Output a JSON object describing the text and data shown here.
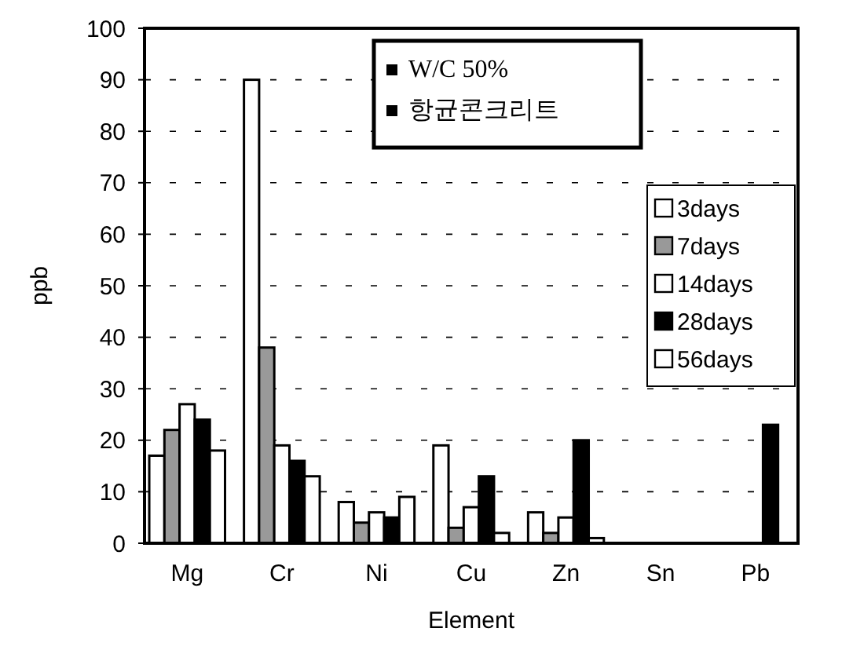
{
  "chart_data": {
    "type": "bar",
    "xlabel": "Element",
    "ylabel": "ppb",
    "categories": [
      "Mg",
      "Cr",
      "Ni",
      "Cu",
      "Zn",
      "Sn",
      "Pb"
    ],
    "series": [
      {
        "name": "3days",
        "color": "#ffffff",
        "values": [
          17,
          90,
          8,
          19,
          6,
          0,
          0
        ]
      },
      {
        "name": "7days",
        "color": "#999999",
        "values": [
          22,
          38,
          4,
          3,
          2,
          0,
          0
        ]
      },
      {
        "name": "14days",
        "color": "#ffffff",
        "values": [
          27,
          19,
          6,
          7,
          5,
          0,
          0
        ]
      },
      {
        "name": "28days",
        "color": "#000000",
        "values": [
          24,
          16,
          5,
          13,
          20,
          0,
          23
        ]
      },
      {
        "name": "56days",
        "color": "#ffffff",
        "values": [
          18,
          13,
          9,
          2,
          1,
          0,
          0
        ]
      }
    ],
    "ylim": [
      0,
      100
    ],
    "yticks": [
      0,
      10,
      20,
      30,
      40,
      50,
      60,
      70,
      80,
      90,
      100
    ],
    "grid": "y",
    "legend": "right",
    "annotations": [
      "W/C 50%",
      "항균콘크리트"
    ]
  }
}
